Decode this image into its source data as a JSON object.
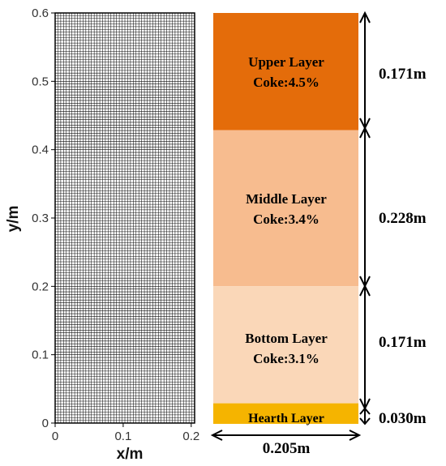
{
  "mesh_plot": {
    "xlabel": "x/m",
    "ylabel": "y/m",
    "x_ticks": [
      {
        "value": 0,
        "label": "0"
      },
      {
        "value": 0.1,
        "label": "0.1"
      },
      {
        "value": 0.2,
        "label": "0.2"
      }
    ],
    "y_ticks": [
      {
        "value": 0,
        "label": "0"
      },
      {
        "value": 0.1,
        "label": "0.1"
      },
      {
        "value": 0.2,
        "label": "0.2"
      },
      {
        "value": 0.3,
        "label": "0.3"
      },
      {
        "value": 0.4,
        "label": "0.4"
      },
      {
        "value": 0.5,
        "label": "0.5"
      },
      {
        "value": 0.6,
        "label": "0.6"
      }
    ],
    "xlim": [
      0,
      0.205
    ],
    "ylim": [
      0,
      0.6
    ],
    "mesh_color": "#111111"
  },
  "layers": [
    {
      "id": "upper",
      "line1": "Upper Layer",
      "line2": "Coke:4.5%",
      "height_label": "0.171m",
      "y_from": 0.429,
      "y_to": 0.6,
      "color": "#e46c0a"
    },
    {
      "id": "middle",
      "line1": "Middle Layer",
      "line2": "Coke:3.4%",
      "height_label": "0.228m",
      "y_from": 0.201,
      "y_to": 0.429,
      "color": "#f7bc8f"
    },
    {
      "id": "bottom",
      "line1": "Bottom Layer",
      "line2": "Coke:3.1%",
      "height_label": "0.171m",
      "y_from": 0.03,
      "y_to": 0.201,
      "color": "#fad7b8"
    },
    {
      "id": "hearth",
      "line1": "Hearth Layer",
      "line2": "",
      "height_label": "0.030m",
      "y_from": 0.0,
      "y_to": 0.03,
      "color": "#f5b400"
    }
  ],
  "width_label": "0.205m"
}
